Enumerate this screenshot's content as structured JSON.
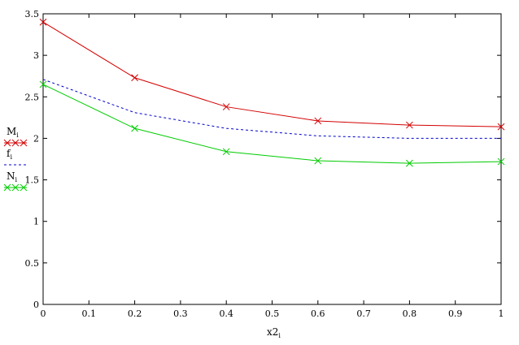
{
  "chart_data": {
    "type": "line",
    "xlabel": "x2",
    "xlabel_sub": "i",
    "ylabel": "",
    "xlim": [
      0,
      1
    ],
    "ylim": [
      0,
      3.5
    ],
    "x_ticks": [
      "0",
      "0.1",
      "0.2",
      "0.3",
      "0.4",
      "0.5",
      "0.6",
      "0.7",
      "0.8",
      "0.9",
      "1"
    ],
    "y_ticks": [
      "0",
      "0.5",
      "1",
      "1.5",
      "2",
      "2.5",
      "3",
      "3.5"
    ],
    "grid": false,
    "legend_position": "left",
    "x": [
      0,
      0.2,
      0.4,
      0.6,
      0.8,
      1.0
    ],
    "series": [
      {
        "name": "M",
        "sub": "i",
        "values": [
          3.4,
          2.73,
          2.38,
          2.21,
          2.16,
          2.14
        ],
        "color": "#d40000",
        "dash": "solid",
        "marker": "x"
      },
      {
        "name": "f",
        "sub": "i",
        "values": [
          2.71,
          2.31,
          2.12,
          2.03,
          2.0,
          2.0
        ],
        "color": "#0000cc",
        "dash": "dashed",
        "marker": "none"
      },
      {
        "name": "N",
        "sub": "i",
        "values": [
          2.65,
          2.12,
          1.84,
          1.73,
          1.7,
          1.72
        ],
        "color": "#00cc00",
        "dash": "solid",
        "marker": "x"
      }
    ]
  }
}
